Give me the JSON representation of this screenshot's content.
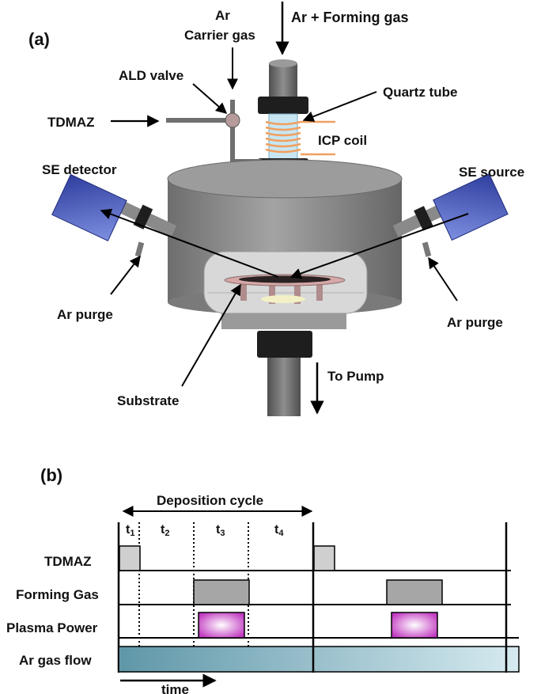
{
  "panel_a": {
    "label": "(a)",
    "labels": {
      "ar_forming": "Ar + Forming gas",
      "ar": "Ar",
      "carrier_gas": "Carrier gas",
      "ald_valve": "ALD valve",
      "quartz_tube": "Quartz tube",
      "tdmaz": "TDMAZ",
      "icp_coil": "ICP coil",
      "se_detector": "SE detector",
      "se_source": "SE  source",
      "ar_purge_left": "Ar purge",
      "ar_purge_right": "Ar purge",
      "to_pump": "To Pump",
      "substrate": "Substrate"
    }
  },
  "panel_b": {
    "label": "(b)",
    "deposition_cycle": "Deposition cycle",
    "steps": [
      "t",
      "t",
      "t",
      "t"
    ],
    "step_subs": [
      "1",
      "2",
      "3",
      "4"
    ],
    "rows": [
      "TDMAZ",
      "Forming Gas",
      "Plasma Power",
      "Ar gas flow"
    ],
    "time_label": "time"
  },
  "colors": {
    "chamber": "#8c8c8c",
    "window": "#d9d9d9",
    "se_box": "#3a4fae",
    "coil": "#f0a060",
    "quartz": "#c8e6f2",
    "pulse_gray": "#a6a6a6",
    "plasma": "#cc44cc",
    "ar_flow": "#6fa3b2"
  }
}
